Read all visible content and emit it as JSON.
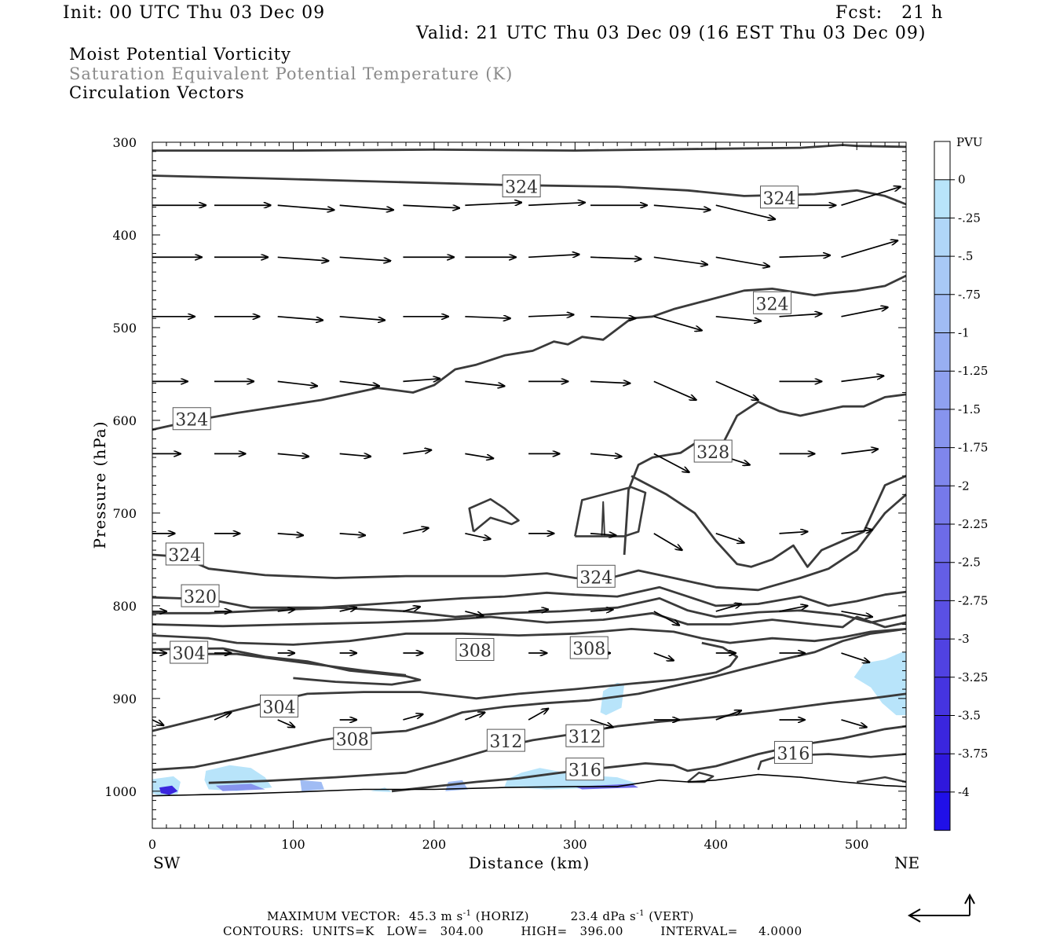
{
  "header": {
    "init": "Init: 00 UTC Thu 03 Dec 09",
    "fcst": "Fcst:   21 h",
    "valid": "Valid: 21 UTC Thu 03 Dec 09 (16 EST Thu 03 Dec 09)",
    "field1": "Moist Potential Vorticity",
    "field2": "Saturation Equivalent Potential Temperature (K)",
    "field3": "Circulation Vectors"
  },
  "chart_data": {
    "type": "cross-section",
    "xlabel": "Distance (km)",
    "ylabel": "Pressure (hPa)",
    "xlim": [
      0,
      535
    ],
    "ylim": [
      1040,
      300
    ],
    "x_ticks": [
      0,
      100,
      200,
      300,
      400,
      500
    ],
    "x_tick_labels": [
      "0",
      "100",
      "200",
      "300",
      "400",
      "500"
    ],
    "y_ticks": [
      300,
      400,
      500,
      600,
      700,
      800,
      900,
      1000
    ],
    "y_tick_labels": [
      "300",
      "400",
      "500",
      "600",
      "700",
      "800",
      "900",
      "1000"
    ],
    "left_end_label": "SW",
    "right_end_label": "NE",
    "colorbar": {
      "unit": "PVU",
      "labels": [
        "0",
        "-.25",
        "-.5",
        "-.75",
        "-1",
        "-1.25",
        "-1.5",
        "-1.75",
        "-2",
        "-2.25",
        "-2.5",
        "-2.75",
        "-3",
        "-3.25",
        "-3.5",
        "-3.75",
        "-4"
      ],
      "colors": [
        "#ffffff",
        "#b8e4fa",
        "#b0d6f8",
        "#a8c9f6",
        "#a0bcf4",
        "#98aff2",
        "#8fa1f0",
        "#8794ee",
        "#7f86ec",
        "#7679ea",
        "#6d6be8",
        "#645ee6",
        "#5a50e4",
        "#5042e2",
        "#4534e0",
        "#3a26de",
        "#2f18dc",
        "#2010e8"
      ]
    },
    "contour_labels": [
      {
        "text": "324",
        "x": 262,
        "p": 348
      },
      {
        "text": "324",
        "x": 445,
        "p": 360
      },
      {
        "text": "324",
        "x": 440,
        "p": 474
      },
      {
        "text": "324",
        "x": 28,
        "p": 599
      },
      {
        "text": "328",
        "x": 398,
        "p": 634
      },
      {
        "text": "324",
        "x": 23,
        "p": 745
      },
      {
        "text": "324",
        "x": 315,
        "p": 769
      },
      {
        "text": "320",
        "x": 34,
        "p": 790
      },
      {
        "text": "304",
        "x": 26,
        "p": 851
      },
      {
        "text": "308",
        "x": 229,
        "p": 848
      },
      {
        "text": "308",
        "x": 310,
        "p": 846
      },
      {
        "text": "304",
        "x": 90,
        "p": 909
      },
      {
        "text": "308",
        "x": 142,
        "p": 944
      },
      {
        "text": "312",
        "x": 251,
        "p": 946
      },
      {
        "text": "312",
        "x": 307,
        "p": 941
      },
      {
        "text": "316",
        "x": 307,
        "p": 977
      },
      {
        "text": "316",
        "x": 455,
        "p": 959
      }
    ],
    "vector_levels_hpa": [
      368,
      424,
      488,
      558,
      636,
      722,
      806,
      851,
      923
    ],
    "vector_x_km": [
      0,
      44,
      89,
      133,
      178,
      222,
      267,
      311,
      356,
      400,
      445,
      489
    ]
  },
  "footer": {
    "line1": "MAXIMUM VECTOR:  45.3 m s",
    "line1_exp": "-1",
    "line1_b": " (HORIZ)          23.4 dPa s",
    "line1_exp2": "-1",
    "line1_c": " (VERT)",
    "line2": "CONTOURS:  UNITS=K   LOW=   304.00         HIGH=   396.00         INTERVAL=     4.0000"
  }
}
